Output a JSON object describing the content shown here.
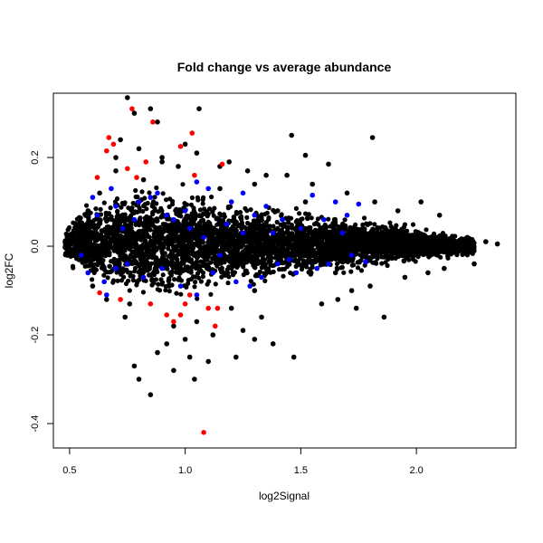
{
  "chart_data": {
    "type": "scatter",
    "title": "Fold change vs average abundance",
    "xlabel": "log2Signal",
    "ylabel": "log2FC",
    "xlim": [
      0.43,
      2.43
    ],
    "ylim": [
      -0.455,
      0.345
    ],
    "xticks": [
      "0.5",
      "1.0",
      "1.5",
      "2.0"
    ],
    "yticks": [
      "-0.4",
      "-0.2",
      "0.0",
      "0.2"
    ],
    "grid": false,
    "legend": "none",
    "colors": {
      "background": "#000000",
      "highlight_a": "#0000ff",
      "highlight_b": "#ff0000"
    },
    "bulk_band": [
      [
        0.48,
        -0.03,
        0.04
      ],
      [
        0.55,
        -0.08,
        0.1
      ],
      [
        0.65,
        -0.11,
        0.13
      ],
      [
        0.8,
        -0.14,
        0.16
      ],
      [
        1.0,
        -0.13,
        0.15
      ],
      [
        1.2,
        -0.11,
        0.12
      ],
      [
        1.4,
        -0.09,
        0.1
      ],
      [
        1.6,
        -0.07,
        0.08
      ],
      [
        1.8,
        -0.06,
        0.07
      ],
      [
        2.0,
        -0.04,
        0.05
      ],
      [
        2.15,
        -0.03,
        0.03
      ],
      [
        2.25,
        -0.02,
        0.02
      ]
    ],
    "series": [
      {
        "color": "#000000",
        "points": [
          [
            0.75,
            0.335
          ],
          [
            0.85,
            0.31
          ],
          [
            1.06,
            0.31
          ],
          [
            0.78,
            0.3
          ],
          [
            0.88,
            0.28
          ],
          [
            1.46,
            0.25
          ],
          [
            1.81,
            0.245
          ],
          [
            0.72,
            0.24
          ],
          [
            0.8,
            0.22
          ],
          [
            1.0,
            0.23
          ],
          [
            1.05,
            0.21
          ],
          [
            1.62,
            0.185
          ],
          [
            1.52,
            0.205
          ],
          [
            0.7,
            0.2
          ],
          [
            0.9,
            0.19
          ],
          [
            1.15,
            0.18
          ],
          [
            2.35,
            0.005
          ],
          [
            2.22,
            0.02
          ],
          [
            2.25,
            -0.04
          ],
          [
            2.3,
            0.01
          ],
          [
            0.8,
            -0.3
          ],
          [
            0.85,
            -0.335
          ],
          [
            1.04,
            -0.3
          ],
          [
            0.78,
            -0.27
          ],
          [
            0.95,
            -0.28
          ],
          [
            1.02,
            -0.25
          ],
          [
            0.88,
            -0.24
          ],
          [
            1.1,
            -0.26
          ],
          [
            1.22,
            -0.25
          ],
          [
            1.47,
            -0.25
          ],
          [
            1.38,
            -0.22
          ],
          [
            1.3,
            -0.21
          ],
          [
            1.25,
            -0.19
          ],
          [
            1.12,
            -0.2
          ],
          [
            1.0,
            -0.21
          ],
          [
            0.92,
            -0.22
          ],
          [
            1.86,
            -0.16
          ],
          [
            1.74,
            -0.14
          ],
          [
            1.66,
            -0.12
          ],
          [
            1.59,
            -0.13
          ],
          [
            1.72,
            -0.1
          ],
          [
            1.8,
            -0.09
          ],
          [
            1.95,
            -0.07
          ],
          [
            2.05,
            -0.06
          ],
          [
            1.82,
            0.1
          ],
          [
            1.7,
            0.12
          ],
          [
            1.55,
            0.14
          ],
          [
            1.44,
            0.16
          ],
          [
            1.35,
            0.16
          ],
          [
            1.3,
            0.14
          ],
          [
            1.27,
            0.17
          ],
          [
            1.19,
            0.19
          ],
          [
            2.02,
            0.1
          ],
          [
            1.92,
            0.08
          ],
          [
            2.1,
            0.07
          ],
          [
            2.12,
            -0.05
          ],
          [
            0.58,
            0.08
          ],
          [
            0.6,
            -0.09
          ],
          [
            0.63,
            0.12
          ],
          [
            0.66,
            -0.12
          ],
          [
            0.74,
            -0.16
          ],
          [
            0.7,
            0.17
          ],
          [
            0.95,
            -0.18
          ],
          [
            1.05,
            -0.17
          ],
          [
            0.9,
            0.2
          ],
          [
            0.97,
            0.18
          ],
          [
            1.9,
            0.005
          ],
          [
            1.3,
            -0.1
          ],
          [
            1.6,
            0.02
          ],
          [
            0.55,
            0.02
          ],
          [
            1.15,
            0.13
          ],
          [
            1.4,
            0.08
          ],
          [
            1.2,
            -0.14
          ],
          [
            0.82,
            0.15
          ],
          [
            0.76,
            -0.13
          ],
          [
            1.65,
            -0.06
          ],
          [
            1.52,
            0.1
          ],
          [
            1.33,
            -0.16
          ]
        ]
      },
      {
        "color": "#0000ff",
        "points": [
          [
            0.62,
            0.07
          ],
          [
            0.55,
            -0.02
          ],
          [
            0.58,
            -0.06
          ],
          [
            0.65,
            -0.08
          ],
          [
            0.7,
            0.09
          ],
          [
            0.73,
            0.04
          ],
          [
            0.75,
            -0.04
          ],
          [
            0.8,
            0.1
          ],
          [
            0.82,
            -0.07
          ],
          [
            0.88,
            0.12
          ],
          [
            0.9,
            -0.05
          ],
          [
            0.95,
            0.06
          ],
          [
            0.98,
            -0.09
          ],
          [
            1.0,
            0.08
          ],
          [
            1.05,
            -0.11
          ],
          [
            1.1,
            0.13
          ],
          [
            1.12,
            -0.06
          ],
          [
            1.18,
            0.05
          ],
          [
            1.2,
            0.1
          ],
          [
            1.22,
            -0.08
          ],
          [
            1.25,
            0.12
          ],
          [
            1.28,
            -0.09
          ],
          [
            1.3,
            0.07
          ],
          [
            1.33,
            -0.07
          ],
          [
            1.35,
            0.09
          ],
          [
            1.4,
            -0.04
          ],
          [
            1.42,
            0.06
          ],
          [
            1.45,
            -0.03
          ],
          [
            1.5,
            0.04
          ],
          [
            1.55,
            0.115
          ],
          [
            1.57,
            -0.05
          ],
          [
            1.6,
            0.06
          ],
          [
            1.62,
            -0.04
          ],
          [
            1.65,
            0.1
          ],
          [
            1.7,
            0.07
          ],
          [
            1.72,
            -0.02
          ],
          [
            1.75,
            0.095
          ],
          [
            1.78,
            -0.035
          ],
          [
            0.6,
            0.11
          ],
          [
            0.68,
            0.13
          ],
          [
            0.85,
            0.11
          ],
          [
            1.15,
            -0.02
          ],
          [
            1.48,
            -0.06
          ],
          [
            0.92,
            0.07
          ],
          [
            0.78,
            0.06
          ],
          [
            1.08,
            0.02
          ],
          [
            1.38,
            0.03
          ],
          [
            1.68,
            0.03
          ],
          [
            0.66,
            -0.11
          ],
          [
            0.7,
            -0.05
          ],
          [
            1.02,
            0.04
          ],
          [
            1.25,
            0.03
          ],
          [
            1.05,
            0.145
          ]
        ]
      },
      {
        "color": "#ff0000",
        "points": [
          [
            0.77,
            0.31
          ],
          [
            0.86,
            0.28
          ],
          [
            1.03,
            0.255
          ],
          [
            0.67,
            0.245
          ],
          [
            0.69,
            0.23
          ],
          [
            0.98,
            0.225
          ],
          [
            0.66,
            0.215
          ],
          [
            1.16,
            0.185
          ],
          [
            0.83,
            0.19
          ],
          [
            0.75,
            0.175
          ],
          [
            0.79,
            0.155
          ],
          [
            0.62,
            0.155
          ],
          [
            1.04,
            0.16
          ],
          [
            1.08,
            -0.42
          ],
          [
            1.13,
            -0.18
          ],
          [
            1.1,
            -0.14
          ],
          [
            1.14,
            -0.14
          ],
          [
            0.98,
            -0.155
          ],
          [
            1.02,
            -0.11
          ],
          [
            0.92,
            -0.155
          ],
          [
            0.85,
            -0.13
          ],
          [
            0.63,
            -0.105
          ],
          [
            0.72,
            -0.12
          ],
          [
            0.95,
            -0.17
          ],
          [
            1.0,
            -0.13
          ]
        ]
      }
    ]
  }
}
